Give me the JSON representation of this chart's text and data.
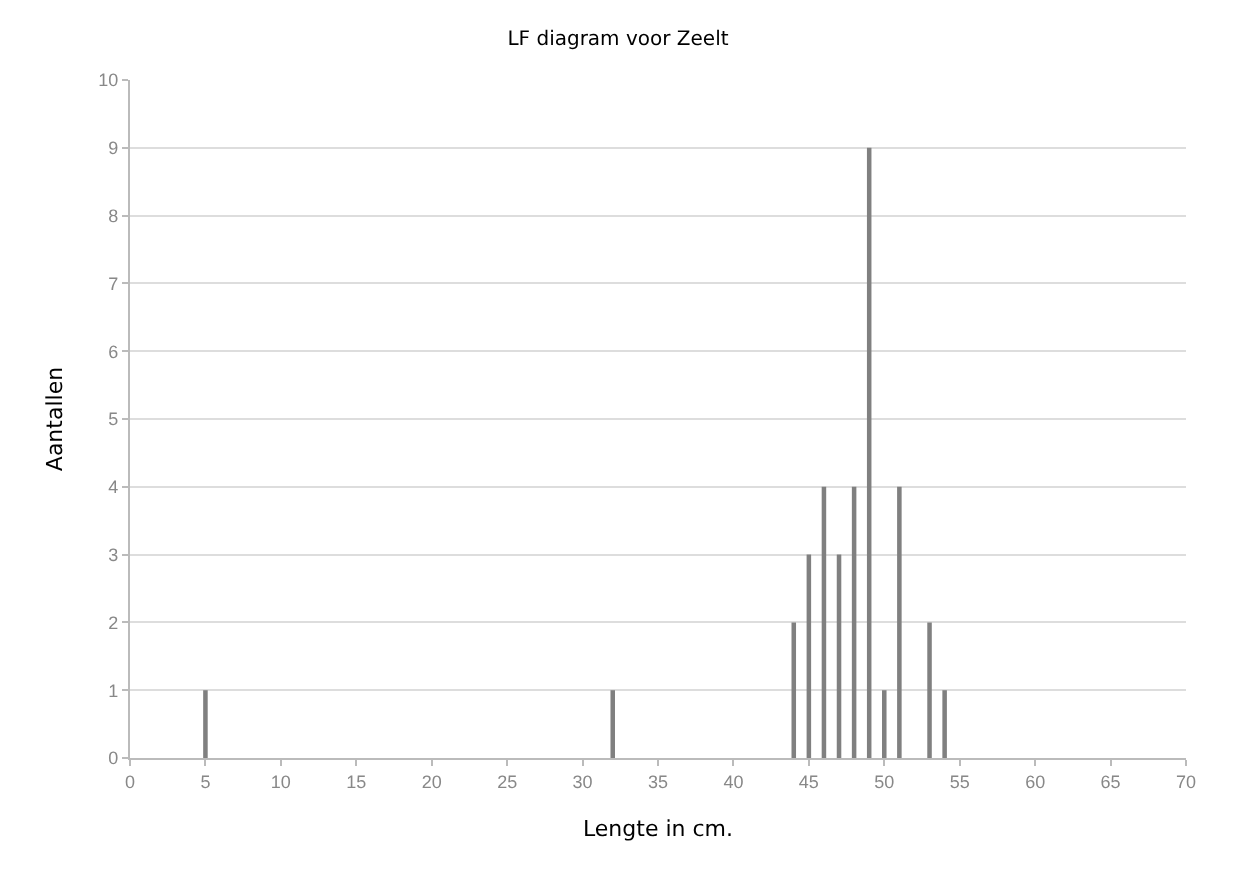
{
  "chart_data": {
    "type": "bar",
    "title": "LF diagram voor Zeelt",
    "xlabel": "Lengte in cm.",
    "ylabel": "Aantallen",
    "x": [
      5,
      32,
      44,
      45,
      46,
      47,
      48,
      49,
      50,
      51,
      53,
      54
    ],
    "values": [
      1,
      1,
      2,
      3,
      4,
      3,
      4,
      9,
      1,
      4,
      2,
      1
    ],
    "color": "#808080",
    "xlim": [
      0,
      70
    ],
    "xticks": [
      0,
      5,
      10,
      15,
      20,
      25,
      30,
      35,
      40,
      45,
      50,
      55,
      60,
      65,
      70
    ],
    "ylim": [
      0,
      10
    ],
    "yticks": [
      0,
      1,
      2,
      3,
      4,
      5,
      6,
      7,
      8,
      9,
      10
    ],
    "grid": "y"
  }
}
